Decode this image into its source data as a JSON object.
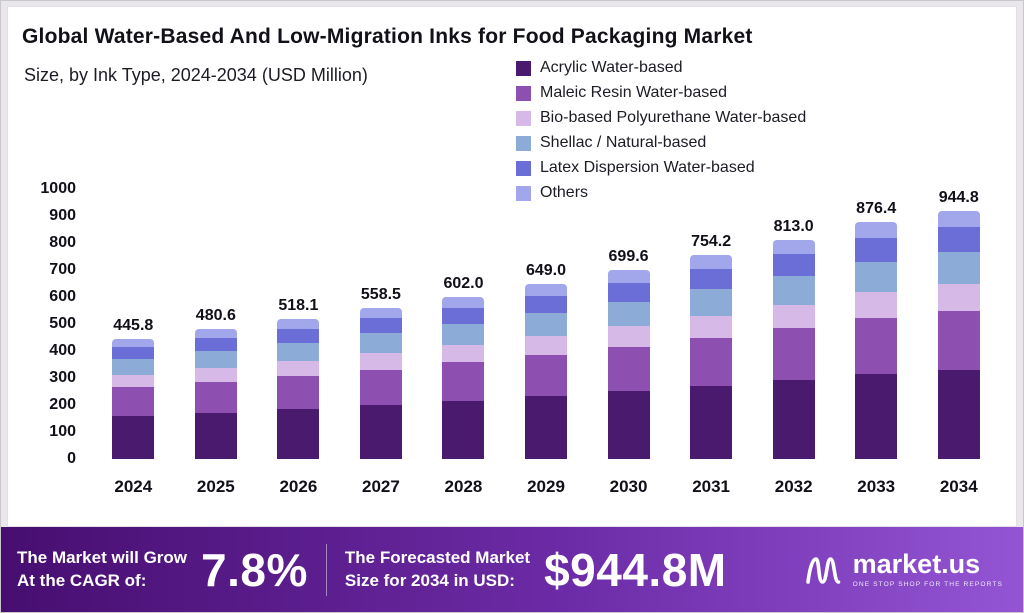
{
  "header": {
    "title": "Global Water-Based And Low-Migration Inks for Food Packaging Market",
    "subtitle": "Size, by Ink Type, 2024-2034 (USD Million)"
  },
  "chart_data": {
    "type": "bar",
    "stacked": true,
    "title": "Global Water-Based And Low-Migration Inks for Food Packaging Market",
    "subtitle": "Size, by Ink Type, 2024-2034 (USD Million)",
    "xlabel": "",
    "ylabel": "USD Million",
    "ylim": [
      0,
      1000
    ],
    "ytick_step": 100,
    "grid": false,
    "legend_position": "top-right",
    "categories": [
      "2024",
      "2025",
      "2026",
      "2027",
      "2028",
      "2029",
      "2030",
      "2031",
      "2032",
      "2033",
      "2034"
    ],
    "totals": [
      445.8,
      480.6,
      518.1,
      558.5,
      602.0,
      649.0,
      699.6,
      754.2,
      813.0,
      876.4,
      944.8
    ],
    "series": [
      {
        "name": "Acrylic Water-based",
        "color": "#4a1a6e",
        "values": [
          160,
          172,
          186,
          200,
          216,
          233,
          251,
          271,
          292,
          315,
          340
        ]
      },
      {
        "name": "Maleic Resin Water-based",
        "color": "#8d4fb0",
        "values": [
          105,
          113,
          122,
          131,
          142,
          153,
          165,
          178,
          192,
          207,
          223
        ]
      },
      {
        "name": "Bio-based Polyurethane Water-based",
        "color": "#d7b9e8",
        "values": [
          48,
          52,
          56,
          61,
          65,
          70,
          76,
          82,
          88,
          95,
          102
        ]
      },
      {
        "name": "Shellac / Natural-based",
        "color": "#8cabd6",
        "values": [
          58,
          63,
          67,
          73,
          78,
          84,
          91,
          98,
          106,
          114,
          123
        ]
      },
      {
        "name": "Latex Dispersion Water-based",
        "color": "#6a6ed6",
        "values": [
          45,
          48,
          52,
          56,
          60,
          65,
          70,
          75,
          81,
          87,
          94
        ]
      },
      {
        "name": "Others",
        "color": "#a2a6ea",
        "values": [
          29.8,
          32.6,
          35.1,
          37.5,
          41,
          44,
          46.6,
          50.2,
          54,
          58.4,
          62.8
        ]
      }
    ]
  },
  "banner": {
    "grow_line1": "The Market will Grow",
    "grow_line2": "At the CAGR of:",
    "cagr_value": "7.8%",
    "forecast_line1": "The Forecasted Market",
    "forecast_line2": "Size for 2034 in USD:",
    "forecast_value": "$944.8M",
    "brand_name": "market.us",
    "brand_tagline": "ONE STOP SHOP FOR THE REPORTS"
  }
}
